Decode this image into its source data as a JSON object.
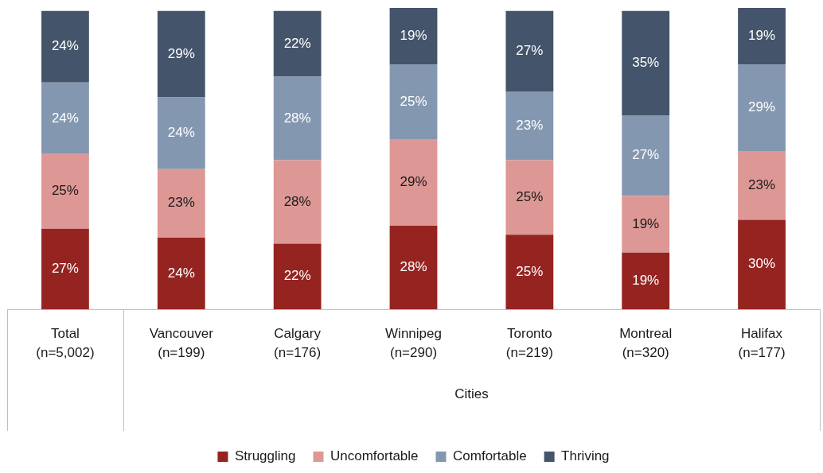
{
  "chart_data": {
    "type": "bar",
    "stacked": true,
    "legend": "bottom",
    "grid": false,
    "categories": [
      "Total\n(n=5,002)",
      "Vancouver\n(n=199)",
      "Calgary\n(n=176)",
      "Winnipeg\n(n=290)",
      "Toronto\n(n=219)",
      "Montreal\n(n=320)",
      "Halifax\n(n=177)"
    ],
    "annotations": [
      "Cities"
    ],
    "series": [
      {
        "name": "Struggling",
        "color": "#952421",
        "values": [
          27,
          24,
          22,
          28,
          25,
          19,
          30
        ],
        "value_labels": [
          "27%",
          "24%",
          "22%",
          "28%",
          "25%",
          "19%",
          "30%"
        ]
      },
      {
        "name": "Uncomfortable",
        "color": "#dd9895",
        "values": [
          25,
          23,
          28,
          29,
          25,
          19,
          23
        ],
        "value_labels": [
          "25%",
          "23%",
          "28%",
          "29%",
          "25%",
          "19%",
          "23%"
        ]
      },
      {
        "name": "Comfortable",
        "color": "#8497b0",
        "values": [
          24,
          24,
          28,
          25,
          23,
          27,
          29
        ],
        "value_labels": [
          "24%",
          "24%",
          "28%",
          "25%",
          "23%",
          "27%",
          "29%"
        ]
      },
      {
        "name": "Thriving",
        "color": "#44546a",
        "values": [
          24,
          29,
          22,
          19,
          27,
          35,
          19
        ],
        "value_labels": [
          "24%",
          "29%",
          "22%",
          "19%",
          "27%",
          "35%",
          "19%"
        ]
      }
    ]
  }
}
